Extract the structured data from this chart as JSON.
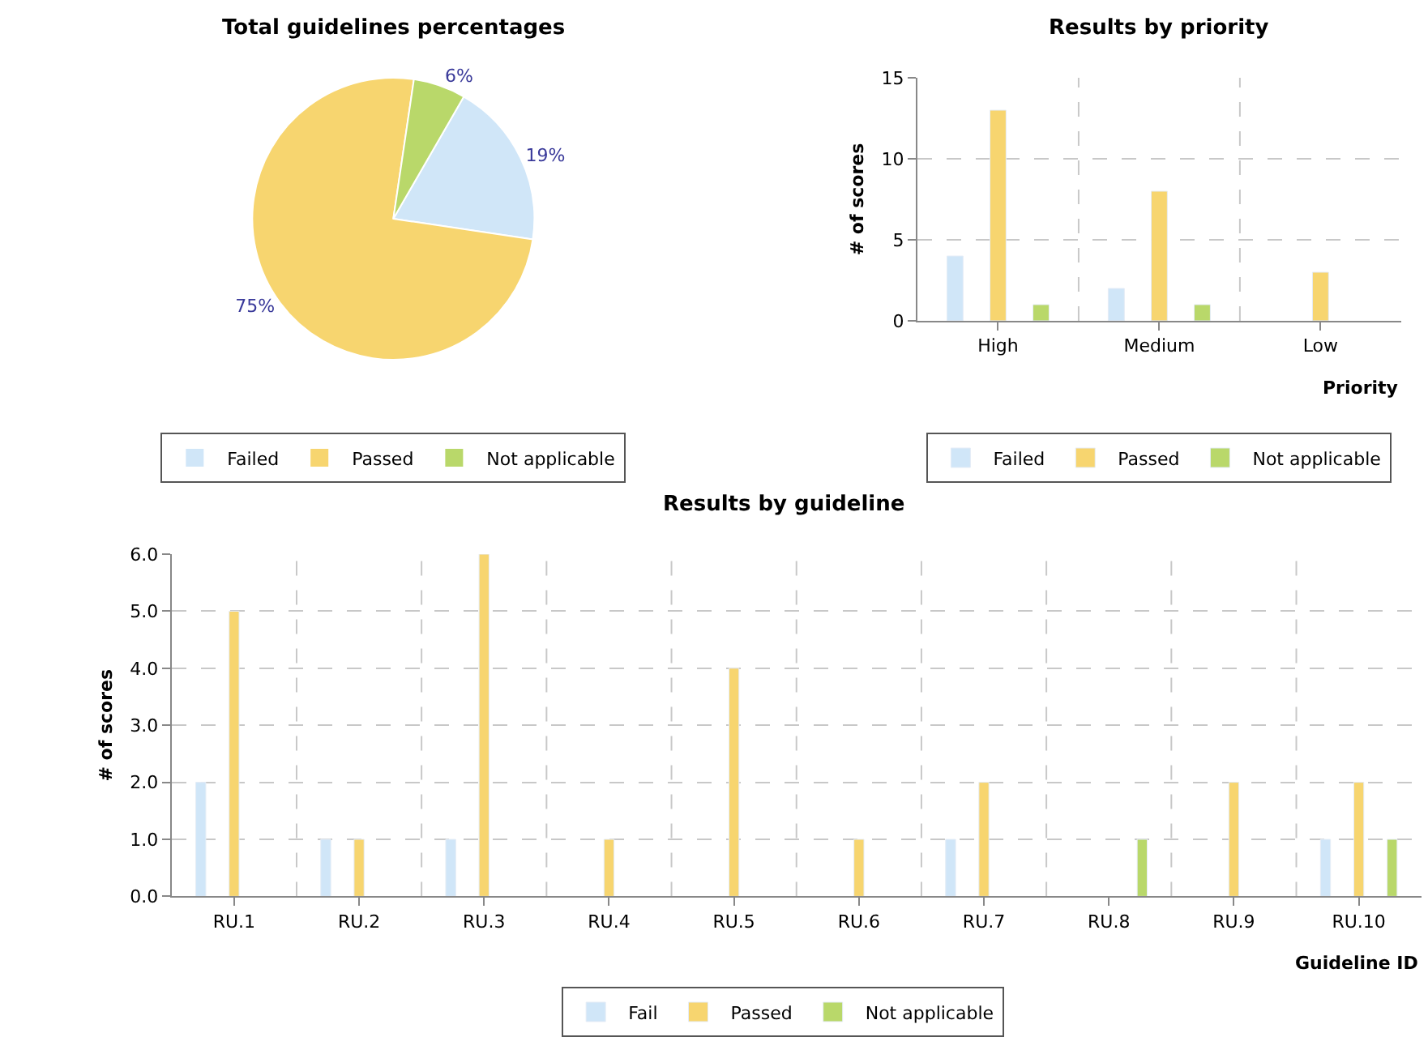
{
  "chart_data": [
    {
      "type": "pie",
      "title": "Total guidelines percentages",
      "categories": [
        "Failed",
        "Passed",
        "Not applicable"
      ],
      "values": [
        19,
        75,
        6
      ],
      "colors": [
        "#d0e6f8",
        "#f7d56f",
        "#b9d86a"
      ],
      "value_labels": [
        "19%",
        "75%",
        "6%"
      ],
      "legend": "bottom"
    },
    {
      "type": "bar",
      "title": "Results by priority",
      "xlabel": "Priority",
      "ylabel": "# of scores",
      "categories": [
        "High",
        "Medium",
        "Low"
      ],
      "series": [
        {
          "name": "Failed",
          "color": "#d0e6f8",
          "values": [
            4,
            2,
            null
          ]
        },
        {
          "name": "Passed",
          "color": "#f7d56f",
          "values": [
            13,
            8,
            3
          ]
        },
        {
          "name": "Not applicable",
          "color": "#b9d86a",
          "values": [
            1,
            1,
            null
          ]
        }
      ],
      "ylim": [
        0,
        15
      ],
      "yticks": [
        0,
        5,
        10,
        15
      ],
      "grid": true,
      "legend": "bottom"
    },
    {
      "type": "bar",
      "title": "Results by guideline",
      "xlabel": "Guideline ID",
      "ylabel": "# of scores",
      "categories": [
        "RU.1",
        "RU.2",
        "RU.3",
        "RU.4",
        "RU.5",
        "RU.6",
        "RU.7",
        "RU.8",
        "RU.9",
        "RU.10"
      ],
      "series": [
        {
          "name": "Fail",
          "color": "#d0e6f8",
          "values": [
            2,
            1,
            1,
            null,
            null,
            null,
            1,
            null,
            null,
            1
          ]
        },
        {
          "name": "Passed",
          "color": "#f7d56f",
          "values": [
            5,
            1,
            6,
            1,
            4,
            1,
            2,
            null,
            2,
            2
          ]
        },
        {
          "name": "Not applicable",
          "color": "#b9d86a",
          "values": [
            null,
            null,
            null,
            null,
            null,
            null,
            null,
            1,
            null,
            1
          ]
        }
      ],
      "ylim": [
        0,
        6
      ],
      "yticks": [
        {
          "value": 0,
          "label": "0.0"
        },
        {
          "value": 1,
          "label": "1.0"
        },
        {
          "value": 2,
          "label": "2.0"
        },
        {
          "value": 3,
          "label": "3.0"
        },
        {
          "value": 4,
          "label": "4.0"
        },
        {
          "value": 5,
          "label": "5.0"
        },
        {
          "value": 6,
          "label": "6.0"
        }
      ],
      "grid": true,
      "legend": "bottom"
    }
  ]
}
